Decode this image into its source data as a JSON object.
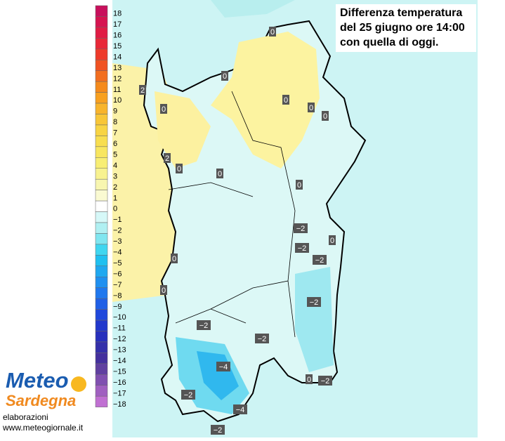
{
  "title": {
    "lines": [
      "Differenza temperatura",
      "del 25 giugno ore 14:00",
      "con quella di oggi."
    ]
  },
  "legend": {
    "items": [
      {
        "label": "18",
        "color": "#c8105c"
      },
      {
        "label": "17",
        "color": "#d61450"
      },
      {
        "label": "16",
        "color": "#e01c44"
      },
      {
        "label": "15",
        "color": "#e82838"
      },
      {
        "label": "14",
        "color": "#ee3a2a"
      },
      {
        "label": "13",
        "color": "#f05222"
      },
      {
        "label": "12",
        "color": "#f26e20"
      },
      {
        "label": "11",
        "color": "#f58a1c"
      },
      {
        "label": "10",
        "color": "#f8a020"
      },
      {
        "label": "9",
        "color": "#f8b42c"
      },
      {
        "label": "8",
        "color": "#f8c638"
      },
      {
        "label": "7",
        "color": "#f8d444"
      },
      {
        "label": "6",
        "color": "#f8de50"
      },
      {
        "label": "5",
        "color": "#f8e660"
      },
      {
        "label": "4",
        "color": "#f8ee74"
      },
      {
        "label": "3",
        "color": "#f8f290"
      },
      {
        "label": "2",
        "color": "#f8f6b0"
      },
      {
        "label": "1",
        "color": "#fafad2"
      },
      {
        "label": "0",
        "color": "#ffffff"
      },
      {
        "label": "−1",
        "color": "#d6f8f8"
      },
      {
        "label": "−2",
        "color": "#b0f0f2"
      },
      {
        "label": "−3",
        "color": "#80e6f0"
      },
      {
        "label": "−4",
        "color": "#40d6f0"
      },
      {
        "label": "−5",
        "color": "#20c0f0"
      },
      {
        "label": "−6",
        "color": "#20a8f0"
      },
      {
        "label": "−7",
        "color": "#2090f0"
      },
      {
        "label": "−8",
        "color": "#2078ee"
      },
      {
        "label": "−9",
        "color": "#2060e6"
      },
      {
        "label": "−10",
        "color": "#2048dc"
      },
      {
        "label": "−11",
        "color": "#2238cc"
      },
      {
        "label": "−12",
        "color": "#2830bc"
      },
      {
        "label": "−13",
        "color": "#3430aa"
      },
      {
        "label": "−14",
        "color": "#44309e"
      },
      {
        "label": "−15",
        "color": "#6040a0"
      },
      {
        "label": "−16",
        "color": "#8050b0"
      },
      {
        "label": "−17",
        "color": "#a060c0"
      },
      {
        "label": "−18",
        "color": "#c070d2"
      }
    ]
  },
  "map_labels": [
    "0",
    "2",
    "0",
    "0",
    "0",
    "0",
    "0",
    "2",
    "0",
    "0",
    "0",
    "−2",
    "0",
    "−2",
    "−2",
    "0",
    "0",
    "−2",
    "−2",
    "−2",
    "−4",
    "0",
    "−2",
    "−2",
    "−4",
    "−2"
  ],
  "logo": {
    "line1": "Meteo",
    "line2": "Sardegna"
  },
  "footer": {
    "credit": "elaborazioni",
    "url": "www.meteogiornale.it"
  }
}
